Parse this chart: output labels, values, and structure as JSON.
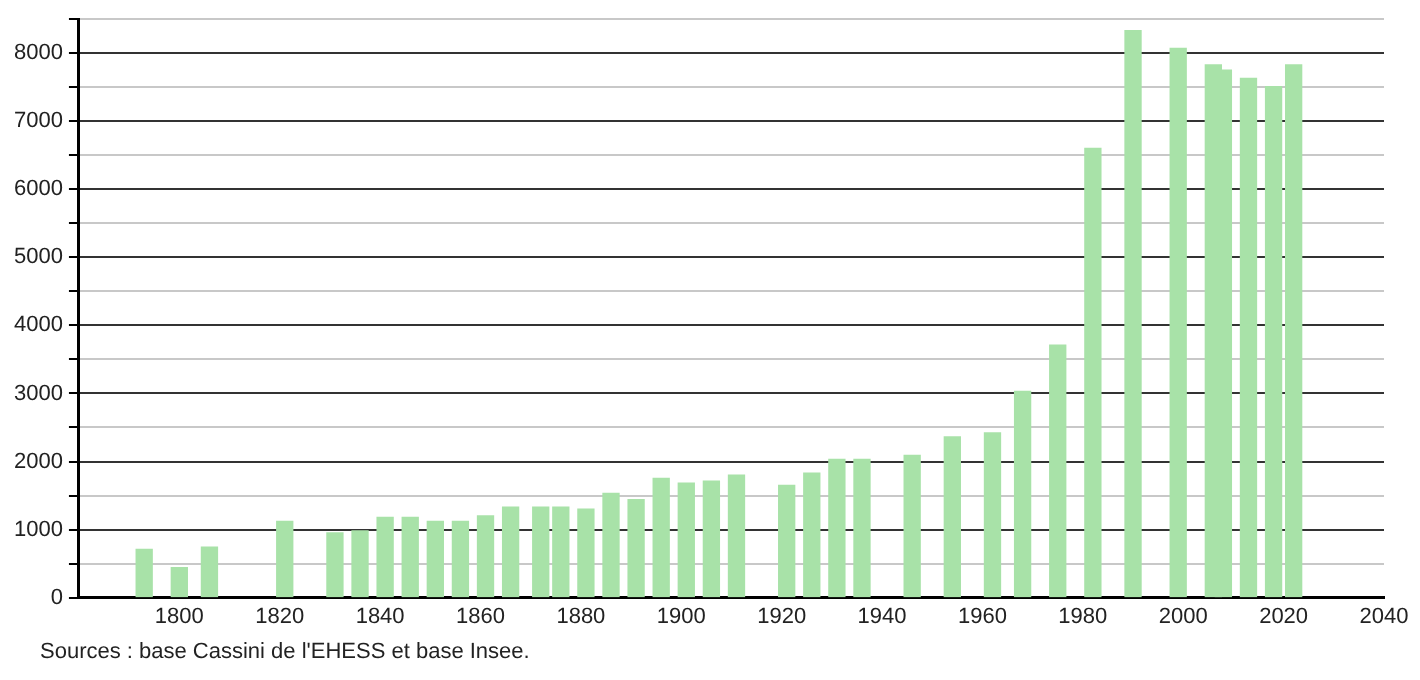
{
  "chart_data": {
    "type": "bar",
    "x": [
      1793,
      1800,
      1806,
      1821,
      1831,
      1836,
      1841,
      1846,
      1851,
      1856,
      1861,
      1866,
      1872,
      1876,
      1881,
      1886,
      1891,
      1896,
      1901,
      1906,
      1911,
      1921,
      1926,
      1931,
      1936,
      1946,
      1954,
      1962,
      1968,
      1975,
      1982,
      1990,
      1999,
      2006,
      2008,
      2013,
      2018,
      2022
    ],
    "values": [
      710,
      440,
      740,
      1120,
      950,
      980,
      1180,
      1180,
      1120,
      1120,
      1200,
      1330,
      1330,
      1330,
      1300,
      1530,
      1440,
      1750,
      1680,
      1710,
      1800,
      1650,
      1830,
      2030,
      2030,
      2090,
      2360,
      2420,
      3030,
      3710,
      6600,
      8330,
      8070,
      7830,
      7750,
      7630,
      7510,
      7830
    ],
    "color": "#a8e2a8",
    "xlim": [
      1780,
      2040
    ],
    "xticks": [
      1800,
      1820,
      1840,
      1860,
      1880,
      1900,
      1920,
      1940,
      1960,
      1980,
      2000,
      2020,
      2040
    ],
    "ylim": [
      0,
      8500
    ],
    "yticks": [
      0,
      {
        "value": 500,
        "label": null
      },
      1000,
      {
        "value": 1500,
        "label": null
      },
      2000,
      {
        "value": 2500,
        "label": null
      },
      3000,
      {
        "value": 3500,
        "label": null
      },
      4000,
      {
        "value": 4500,
        "label": null
      },
      5000,
      {
        "value": 5500,
        "label": null
      },
      6000,
      {
        "value": 6500,
        "label": null
      },
      7000,
      {
        "value": 7500,
        "label": null
      },
      8000,
      {
        "value": 8500,
        "label": null
      }
    ],
    "grid": "y",
    "annotations": [
      "Sources : base Cassini de l'EHESS et base Insee."
    ]
  }
}
